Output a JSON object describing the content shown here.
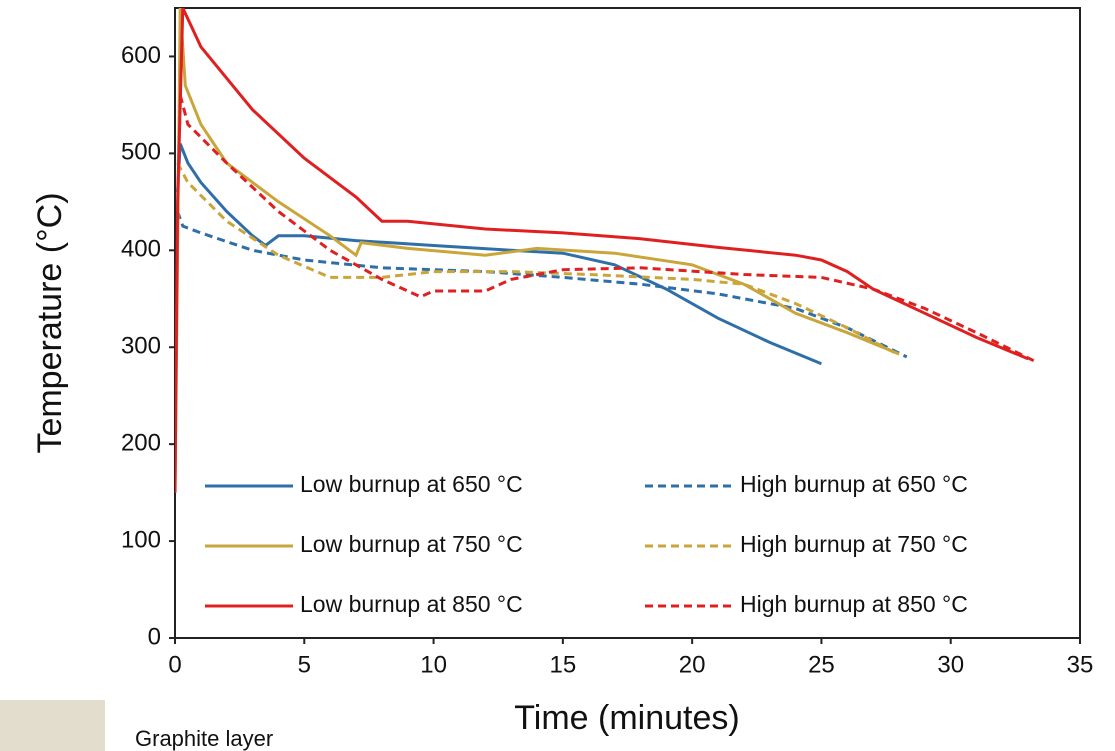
{
  "chart_data": {
    "type": "line",
    "x_label": "Time (minutes)",
    "y_label": "Temperature (°C)",
    "xlim": [
      0,
      35
    ],
    "xticks": [
      0,
      5,
      10,
      15,
      20,
      25,
      30,
      35
    ],
    "ylim": [
      0,
      650
    ],
    "yticks": [
      0,
      100,
      200,
      300,
      400,
      500,
      600
    ],
    "grid": false,
    "legend": "bottom",
    "caption": "Graphite layer",
    "series": [
      {
        "name": "Low burnup at 650 °C",
        "color": "#2e6fa8",
        "style": "solid",
        "x": [
          0.1,
          0.2,
          0.5,
          1,
          2,
          3,
          3.5,
          4,
          5,
          7,
          10,
          13,
          15,
          17,
          19,
          21,
          23,
          25
        ],
        "values": [
          460,
          510,
          490,
          470,
          440,
          415,
          405,
          415,
          415,
          410,
          405,
          400,
          397,
          385,
          360,
          330,
          305,
          283
        ]
      },
      {
        "name": "High burnup at 650 °C",
        "color": "#2e6fa8",
        "style": "dashed",
        "x": [
          0.1,
          0.3,
          1,
          3,
          5,
          8,
          12,
          15,
          18,
          21,
          24,
          26,
          28.3
        ],
        "values": [
          440,
          425,
          418,
          400,
          390,
          382,
          378,
          372,
          365,
          355,
          340,
          320,
          290
        ]
      },
      {
        "name": "Low burnup at 750 °C",
        "color": "#c9a53a",
        "style": "solid",
        "x": [
          0,
          0.2,
          0.4,
          1,
          2,
          4,
          6,
          7,
          7.2,
          9,
          12,
          14,
          17,
          20,
          22,
          24,
          26,
          28
        ],
        "values": [
          150,
          650,
          570,
          530,
          490,
          450,
          415,
          395,
          408,
          402,
          395,
          402,
          397,
          385,
          365,
          335,
          315,
          293
        ]
      },
      {
        "name": "High burnup at 750 °C",
        "color": "#c9a53a",
        "style": "dashed",
        "x": [
          0.1,
          0.5,
          2,
          4,
          6,
          8,
          10,
          13,
          16,
          20,
          22,
          24,
          26,
          28
        ],
        "values": [
          490,
          470,
          430,
          395,
          372,
          372,
          378,
          378,
          375,
          370,
          365,
          345,
          320,
          292
        ]
      },
      {
        "name": "Low burnup at 850 °C",
        "color": "#e02020",
        "style": "solid",
        "x": [
          0,
          0.1,
          0.3,
          1,
          3,
          5,
          7,
          8,
          9,
          12,
          15,
          18,
          21,
          24,
          25,
          26,
          27,
          29,
          31,
          33
        ],
        "values": [
          150,
          450,
          650,
          610,
          545,
          495,
          455,
          430,
          430,
          422,
          418,
          412,
          403,
          395,
          390,
          378,
          360,
          335,
          310,
          288
        ]
      },
      {
        "name": "High burnup at 850 °C",
        "color": "#e02020",
        "style": "dashed",
        "x": [
          0.2,
          0.5,
          2,
          4,
          6,
          8,
          9.5,
          10,
          12,
          13,
          15,
          18,
          22,
          25,
          27,
          29,
          31,
          33.3
        ],
        "values": [
          560,
          530,
          490,
          440,
          400,
          370,
          352,
          358,
          358,
          370,
          380,
          382,
          375,
          372,
          360,
          340,
          315,
          285
        ]
      }
    ]
  }
}
